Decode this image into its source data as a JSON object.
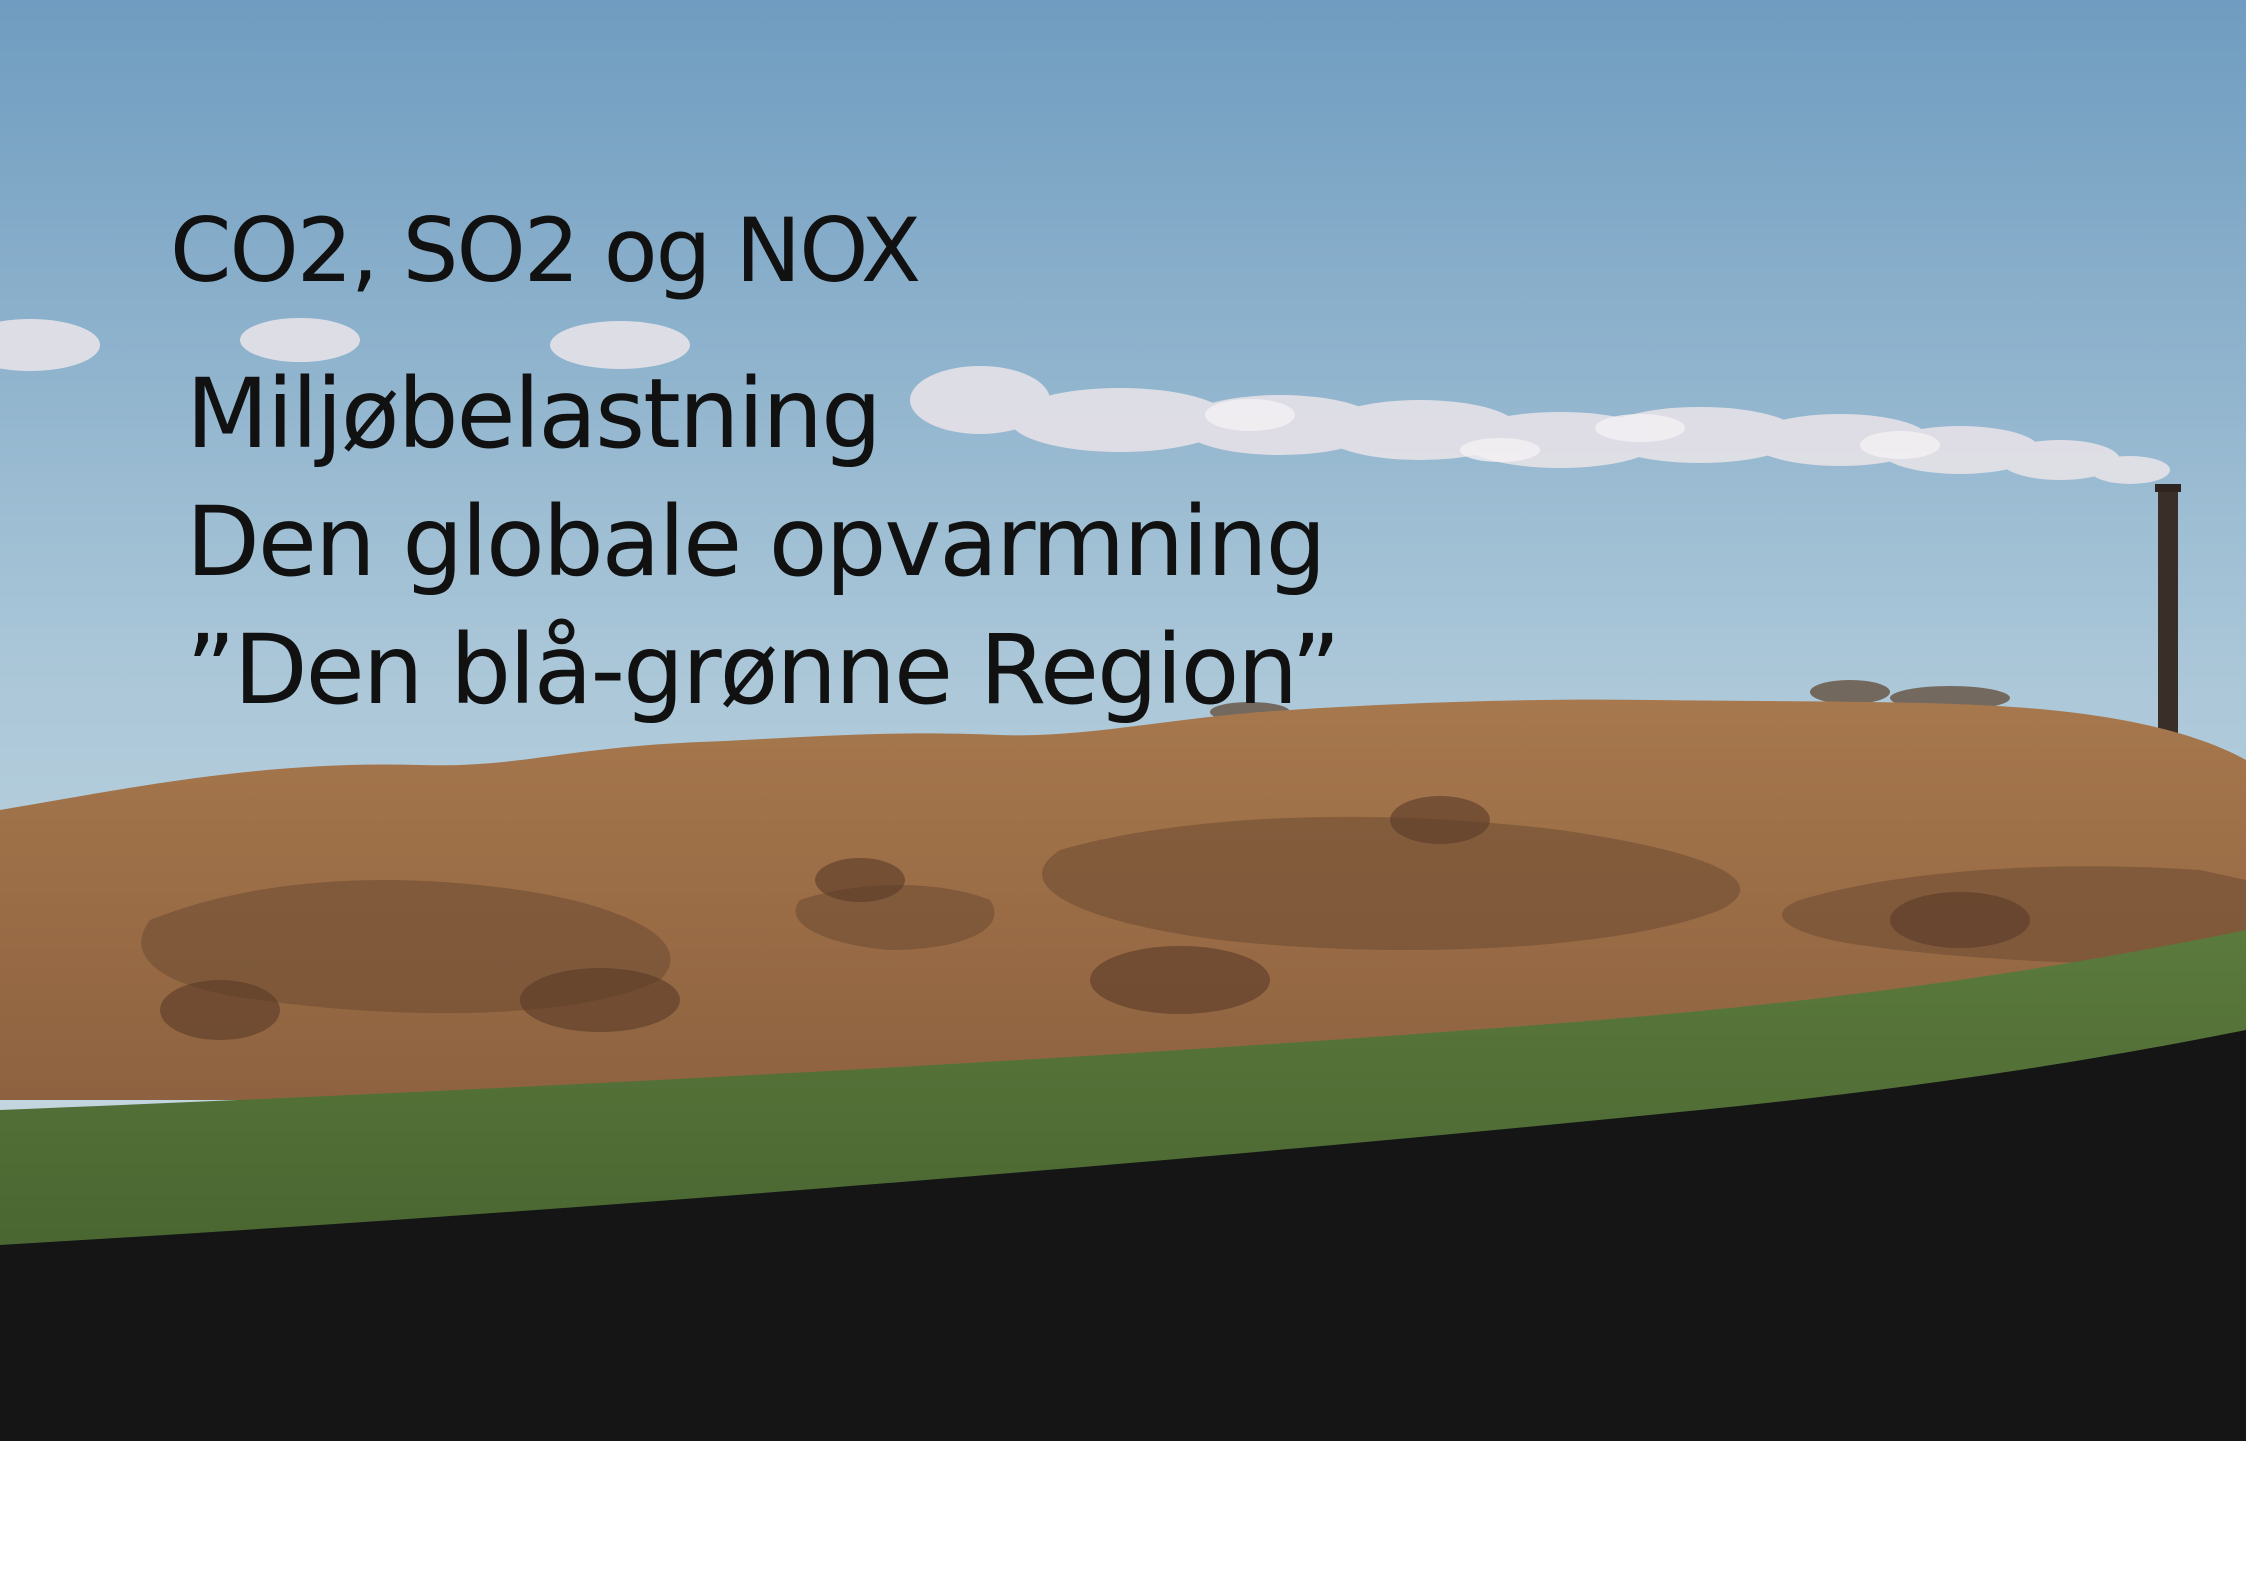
{
  "slide": {
    "title": "CO2, SO2 og NOX",
    "lines": [
      "Miljøbelastning",
      "Den globale opvarmning",
      "”Den blå-grønne Region”"
    ]
  },
  "photo": {
    "subject": "landscape-with-smoking-chimney",
    "colors": {
      "sky_top": "#7fa8c8",
      "sky_bottom": "#c9dce4",
      "hills": "#a97a4c",
      "hills_shadow": "#6b4a32",
      "grass": "#4f6b37",
      "field_shadow": "#151515",
      "smoke": "#e8e4ea",
      "chimney": "#3a2e28"
    }
  }
}
